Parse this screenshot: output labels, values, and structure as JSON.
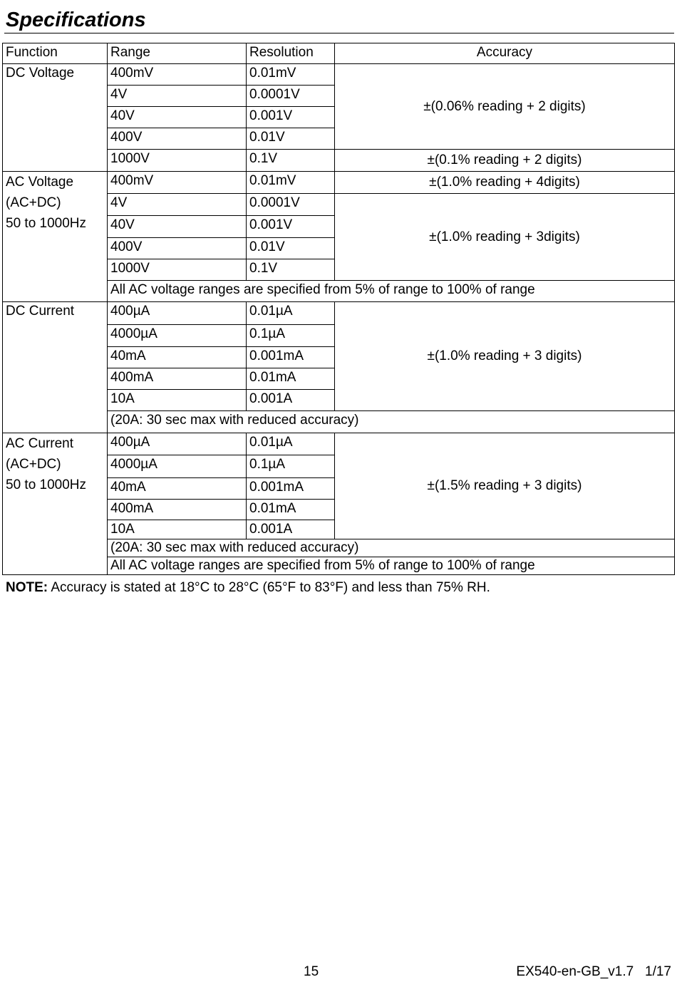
{
  "title": "Specifications",
  "headers": [
    "Function",
    "Range",
    "Resolution",
    "Accuracy"
  ],
  "dcv": {
    "fn": "DC Voltage",
    "rows": [
      [
        "400mV",
        "0.01mV"
      ],
      [
        "4V",
        "0.0001V"
      ],
      [
        "40V",
        "0.001V"
      ],
      [
        "400V",
        "0.01V"
      ],
      [
        "1000V",
        "0.1V"
      ]
    ],
    "acc1": "±(0.06% reading + 2 digits)",
    "acc2": "±(0.1% reading + 2 digits)"
  },
  "acv": {
    "fn": [
      "AC Voltage",
      "(AC+DC)",
      "50 to 1000Hz"
    ],
    "rows": [
      [
        "400mV",
        "0.01mV"
      ],
      [
        "4V",
        "0.0001V"
      ],
      [
        "40V",
        "0.001V"
      ],
      [
        "400V",
        "0.01V"
      ],
      [
        "1000V",
        "0.1V"
      ]
    ],
    "acc1": "±(1.0% reading + 4digits)",
    "acc2": "±(1.0% reading + 3digits)",
    "note": "All AC voltage ranges are specified from 5% of range to 100% of range"
  },
  "dci": {
    "fn": "DC Current",
    "rows": [
      [
        "400µA",
        "0.01µA"
      ],
      [
        "4000µA",
        "0.1µA"
      ],
      [
        "40mA",
        "0.001mA"
      ],
      [
        "400mA",
        "0.01mA"
      ],
      [
        "10A",
        "0.001A"
      ]
    ],
    "acc": "±(1.0% reading + 3 digits)",
    "note": "(20A: 30 sec max with reduced accuracy)"
  },
  "aci": {
    "fn": [
      "AC Current",
      "(AC+DC)",
      "50 to 1000Hz"
    ],
    "rows": [
      [
        "400µA",
        "0.01µA"
      ],
      [
        "4000µA",
        "0.1µA"
      ],
      [
        "40mA",
        "0.001mA"
      ],
      [
        "400mA",
        "0.01mA"
      ],
      [
        "10A",
        "0.001A"
      ]
    ],
    "acc": "±(1.5% reading + 3 digits)",
    "note1": "(20A: 30 sec max with reduced accuracy)",
    "note2": "All AC voltage ranges are specified from 5% of range to 100% of range"
  },
  "note": {
    "label": "NOTE:",
    "text": " Accuracy is stated at 18°C to 28°C (65°F to 83°F) and less than 75% RH."
  },
  "footer": {
    "page": "15",
    "doc": "EX540-en-GB_v1.7   1/17"
  }
}
